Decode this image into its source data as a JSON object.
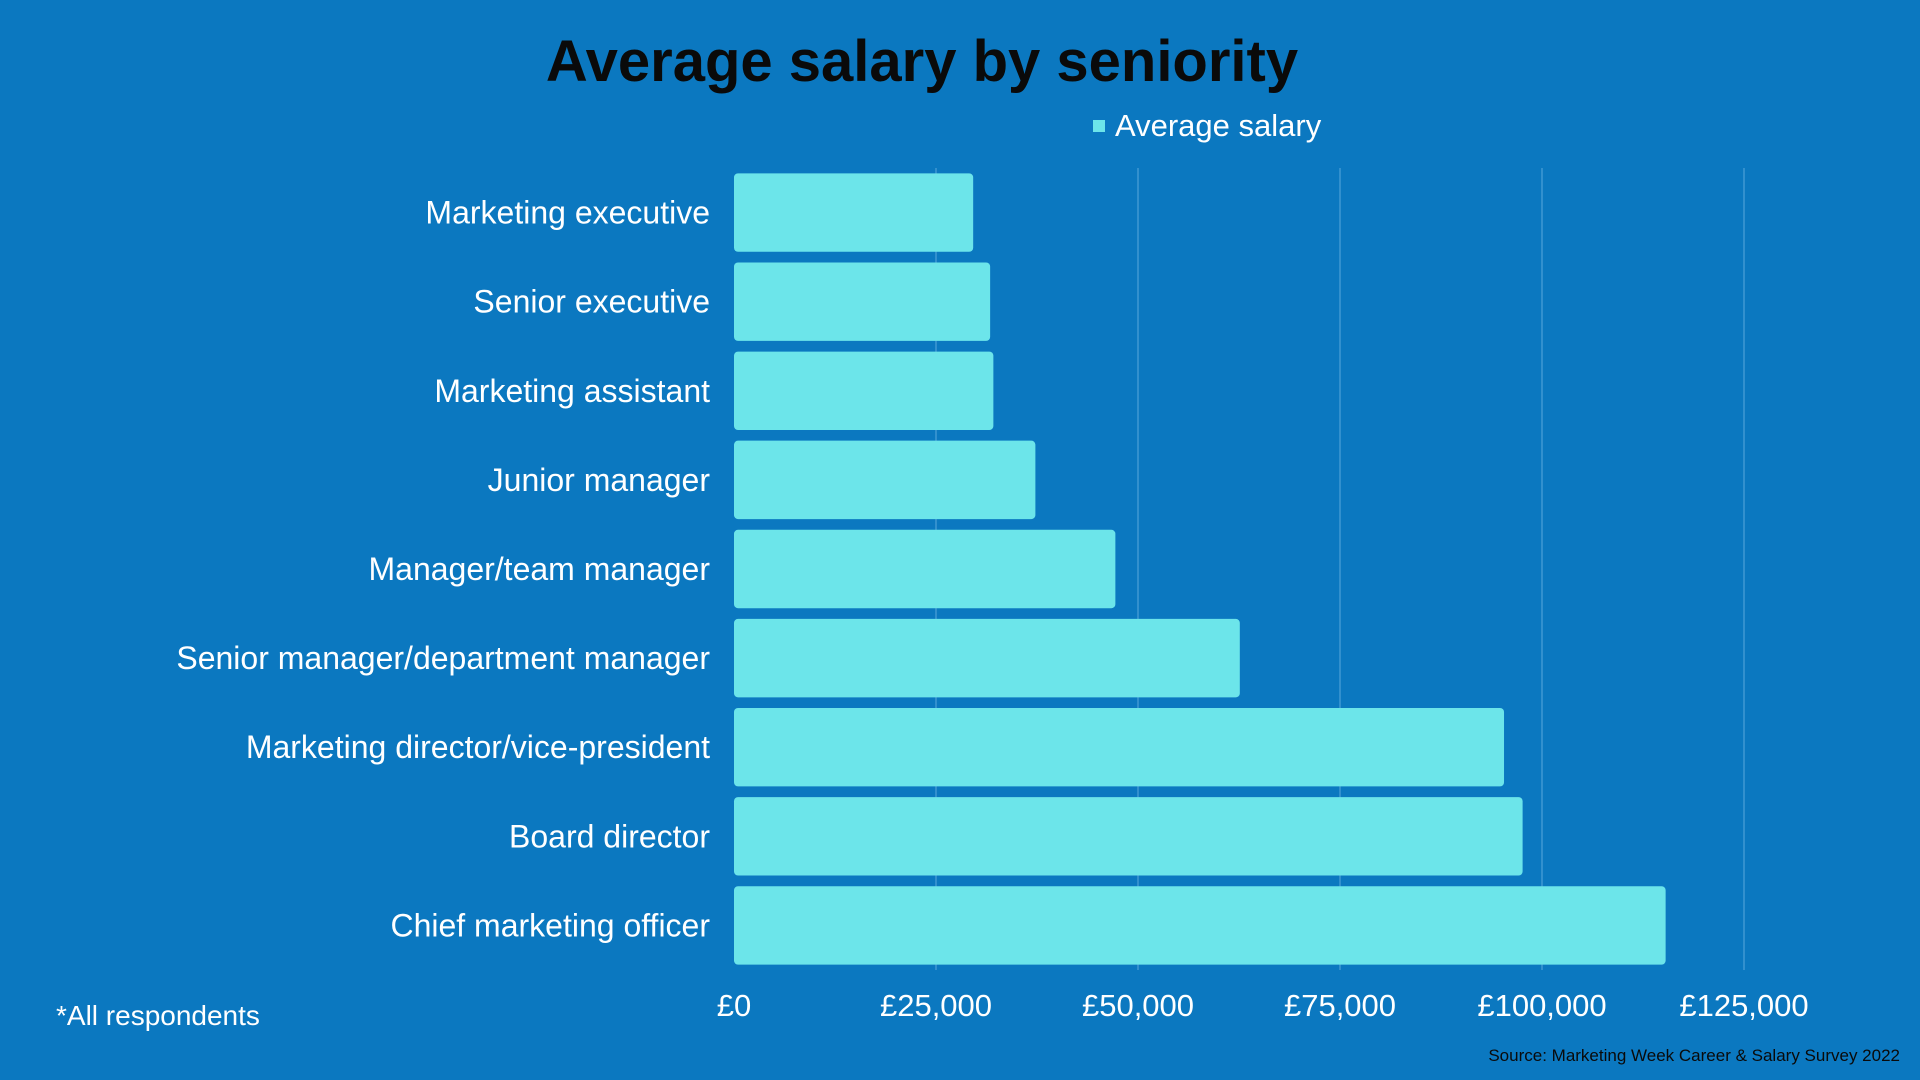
{
  "chart_data": {
    "type": "bar",
    "orientation": "horizontal",
    "title": "Average salary by seniority",
    "legend": {
      "entries": [
        "Average salary"
      ],
      "placement": "top-right"
    },
    "categories": [
      "Marketing executive",
      "Senior executive",
      "Marketing assistant",
      "Junior manager",
      "Manager/team manager",
      "Senior manager/department manager",
      "Marketing director/vice-president",
      "Board director",
      "Chief marketing officer"
    ],
    "series": [
      {
        "name": "Average salary",
        "values": [
          29600,
          31700,
          32100,
          37300,
          47200,
          62600,
          95300,
          97600,
          115300
        ]
      }
    ],
    "xlim": [
      0,
      125000
    ],
    "x_ticks": [
      0,
      25000,
      50000,
      75000,
      100000,
      125000
    ],
    "x_tick_labels": [
      "£0",
      "£25,000",
      "£50,000",
      "£75,000",
      "£100,000",
      "£125,000"
    ],
    "grid": "vertical",
    "bar_color": "#6ce5ea"
  },
  "footnote": "*All respondents",
  "source": "Source: Marketing Week Career & Salary Survey 2022",
  "colors": {
    "background": "#0b78c0",
    "bar": "#6ce5ea",
    "gridline": "#3f97d2"
  }
}
